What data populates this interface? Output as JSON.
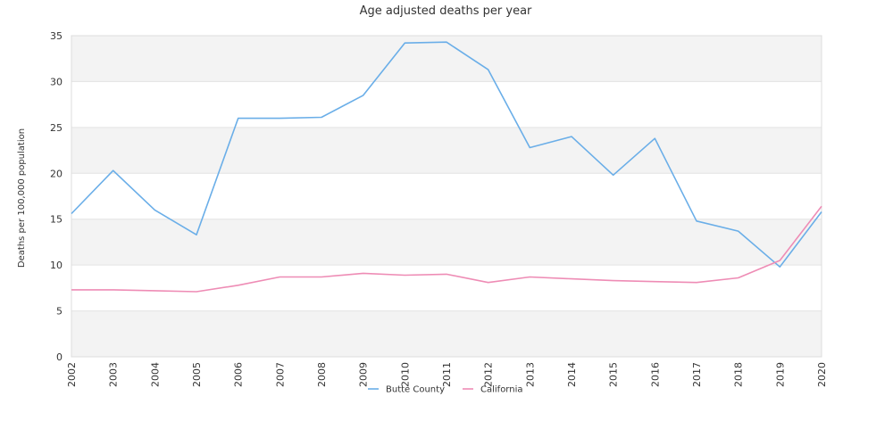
{
  "chart_data": {
    "type": "line",
    "title": "Age adjusted deaths per year",
    "xlabel": "",
    "ylabel": "Deaths per 100,000 population",
    "x": [
      "2002",
      "2003",
      "2004",
      "2005",
      "2006",
      "2007",
      "2008",
      "2009",
      "2010",
      "2011",
      "2012",
      "2013",
      "2014",
      "2015",
      "2016",
      "2017",
      "2018",
      "2019",
      "2020"
    ],
    "ylim": [
      0,
      35
    ],
    "yticks": [
      0,
      5,
      10,
      15,
      20,
      25,
      30,
      35
    ],
    "grid": "horizontal alternating bands",
    "legend": "bottom-center",
    "series": [
      {
        "name": "Butte County",
        "color": "#6aaee8",
        "values": [
          15.6,
          20.3,
          16.0,
          13.3,
          26.0,
          26.0,
          26.1,
          28.5,
          34.2,
          34.3,
          31.3,
          22.8,
          24.0,
          19.8,
          23.8,
          14.8,
          13.7,
          9.8,
          15.8
        ]
      },
      {
        "name": "California",
        "color": "#ee8cb5",
        "values": [
          7.3,
          7.3,
          7.2,
          7.1,
          7.8,
          8.7,
          8.7,
          9.1,
          8.9,
          9.0,
          8.1,
          8.7,
          8.5,
          8.3,
          8.2,
          8.1,
          8.6,
          10.5,
          16.4
        ]
      }
    ]
  }
}
